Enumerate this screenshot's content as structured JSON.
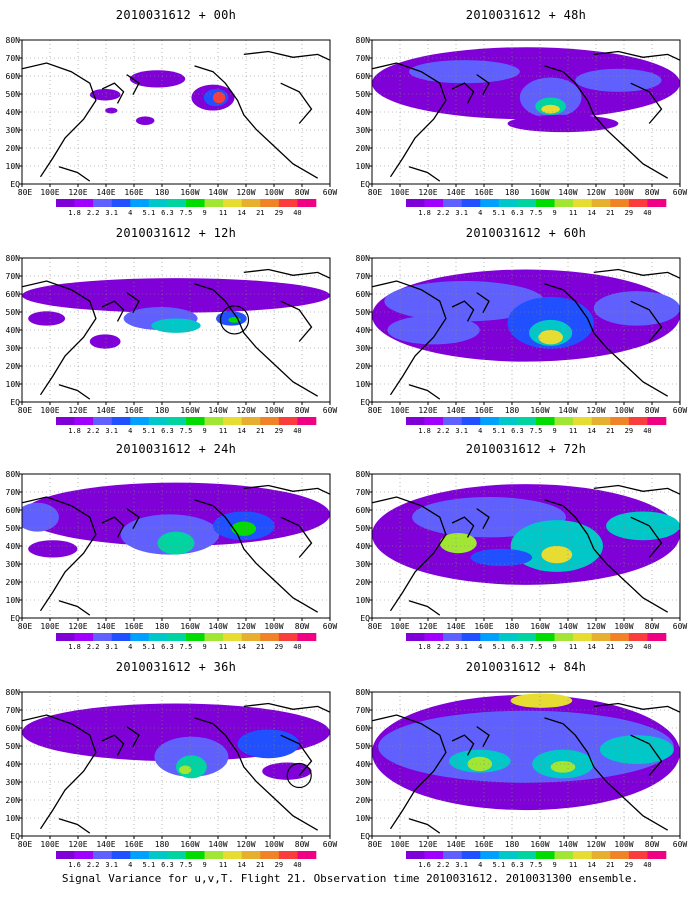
{
  "caption": "Signal Variance for u,v,T. Flight 21. Observation time 2010031612. 2010031300 ensemble.",
  "colors": {
    "levels": [
      "#8000d8",
      "#a000ff",
      "#6060ff",
      "#2050ff",
      "#00a0ff",
      "#00c8c8",
      "#00d4a0",
      "#00dc00",
      "#a0e632",
      "#e6dc32",
      "#e6af2d",
      "#f08228",
      "#fa3c3c",
      "#f00082"
    ],
    "ocean": "#ffffff",
    "coast": "#000000"
  },
  "chart_data": [
    {
      "type": "heatmap",
      "title": "2010031612 + 00h",
      "lead_hours": 0,
      "x_ticks": [
        "80E",
        "100E",
        "120E",
        "140E",
        "160E",
        "180",
        "160W",
        "140W",
        "120W",
        "100W",
        "80W",
        "60W"
      ],
      "y_ticks": [
        "80N",
        "70N",
        "60N",
        "50N",
        "40N",
        "30N",
        "20N",
        "10N",
        "EQ"
      ],
      "colorbar": [
        "1.8",
        "2.2",
        "3.1",
        "4",
        "5.1",
        "6.3",
        "7.5",
        "9",
        "11",
        "14",
        "21",
        "29",
        "40"
      ],
      "grid": true
    },
    {
      "type": "heatmap",
      "title": "2010031612 + 48h",
      "lead_hours": 48,
      "x_ticks": [
        "80E",
        "100E",
        "120E",
        "140E",
        "160E",
        "180",
        "160W",
        "140W",
        "120W",
        "100W",
        "80W",
        "60W"
      ],
      "y_ticks": [
        "80N",
        "70N",
        "60N",
        "50N",
        "40N",
        "30N",
        "20N",
        "10N",
        "EQ"
      ],
      "colorbar": [
        "1.8",
        "2.2",
        "3.1",
        "4",
        "5.1",
        "6.3",
        "7.5",
        "9",
        "11",
        "14",
        "21",
        "29",
        "40"
      ],
      "grid": true
    },
    {
      "type": "heatmap",
      "title": "2010031612 + 12h",
      "lead_hours": 12,
      "x_ticks": [
        "80E",
        "100E",
        "120E",
        "140E",
        "160E",
        "180",
        "160W",
        "140W",
        "120W",
        "100W",
        "80W",
        "60W"
      ],
      "y_ticks": [
        "80N",
        "70N",
        "60N",
        "50N",
        "40N",
        "30N",
        "20N",
        "10N",
        "EQ"
      ],
      "colorbar": [
        "1.8",
        "2.2",
        "3.1",
        "4",
        "5.1",
        "6.3",
        "7.5",
        "9",
        "11",
        "14",
        "21",
        "29",
        "40"
      ],
      "grid": true
    },
    {
      "type": "heatmap",
      "title": "2010031612 + 60h",
      "lead_hours": 60,
      "x_ticks": [
        "80E",
        "100E",
        "120E",
        "140E",
        "160E",
        "180",
        "160W",
        "140W",
        "120W",
        "100W",
        "80W",
        "60W"
      ],
      "y_ticks": [
        "80N",
        "70N",
        "60N",
        "50N",
        "40N",
        "30N",
        "20N",
        "10N",
        "EQ"
      ],
      "colorbar": [
        "1.8",
        "2.2",
        "3.1",
        "4",
        "5.1",
        "6.3",
        "7.5",
        "9",
        "11",
        "14",
        "21",
        "29",
        "40"
      ],
      "grid": true
    },
    {
      "type": "heatmap",
      "title": "2010031612 + 24h",
      "lead_hours": 24,
      "x_ticks": [
        "80E",
        "100E",
        "120E",
        "140E",
        "160E",
        "180",
        "160W",
        "140W",
        "120W",
        "100W",
        "80W",
        "60W"
      ],
      "y_ticks": [
        "80N",
        "70N",
        "60N",
        "50N",
        "40N",
        "30N",
        "20N",
        "10N",
        "EQ"
      ],
      "colorbar": [
        "1.8",
        "2.2",
        "3.1",
        "4",
        "5.1",
        "6.3",
        "7.5",
        "9",
        "11",
        "14",
        "21",
        "29",
        "40"
      ],
      "grid": true
    },
    {
      "type": "heatmap",
      "title": "2010031612 + 72h",
      "lead_hours": 72,
      "x_ticks": [
        "80E",
        "100E",
        "120E",
        "140E",
        "160E",
        "180",
        "160W",
        "140W",
        "120W",
        "100W",
        "80W",
        "60W"
      ],
      "y_ticks": [
        "80N",
        "70N",
        "60N",
        "50N",
        "40N",
        "30N",
        "20N",
        "10N",
        "EQ"
      ],
      "colorbar": [
        "1.8",
        "2.2",
        "3.1",
        "4",
        "5.1",
        "6.3",
        "7.5",
        "9",
        "11",
        "14",
        "21",
        "29",
        "40"
      ],
      "grid": true
    },
    {
      "type": "heatmap",
      "title": "2010031612 + 36h",
      "lead_hours": 36,
      "x_ticks": [
        "80E",
        "100E",
        "120E",
        "140E",
        "160E",
        "180",
        "160W",
        "140W",
        "120W",
        "100W",
        "80W",
        "60W"
      ],
      "y_ticks": [
        "80N",
        "70N",
        "60N",
        "50N",
        "40N",
        "30N",
        "20N",
        "10N",
        "EQ"
      ],
      "colorbar": [
        "1.6",
        "2.2",
        "3.1",
        "4",
        "5.1",
        "6.3",
        "7.5",
        "9",
        "11",
        "14",
        "21",
        "29",
        "40"
      ],
      "grid": true
    },
    {
      "type": "heatmap",
      "title": "2010031612 + 84h",
      "lead_hours": 84,
      "x_ticks": [
        "80E",
        "100E",
        "120E",
        "140E",
        "160E",
        "180",
        "160W",
        "140W",
        "120W",
        "100W",
        "80W",
        "60W"
      ],
      "y_ticks": [
        "80N",
        "70N",
        "60N",
        "50N",
        "40N",
        "30N",
        "20N",
        "10N",
        "EQ"
      ],
      "colorbar": [
        "1.6",
        "2.2",
        "3.1",
        "4",
        "5.1",
        "6.3",
        "7.5",
        "9",
        "11",
        "14",
        "21",
        "29",
        "40"
      ],
      "grid": true
    }
  ]
}
